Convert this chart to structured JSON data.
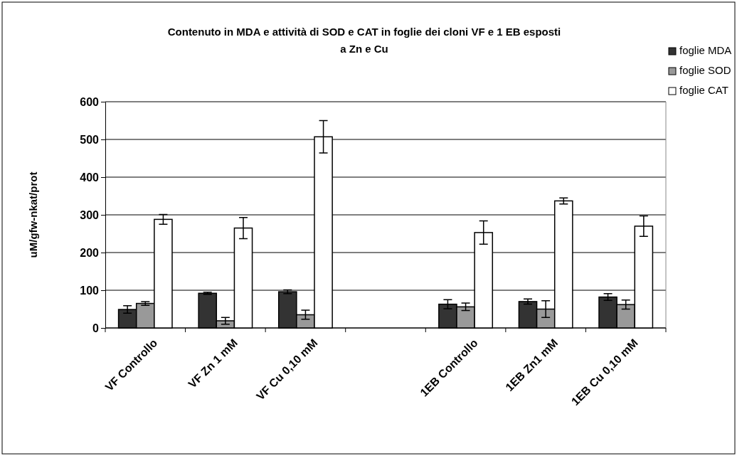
{
  "chart_data": {
    "type": "bar",
    "title": "Contenuto in MDA e attività di SOD e CAT in foglie dei cloni VF e 1 EB esposti a Zn e Cu",
    "ylabel": "uM/gfw-nkat/prot",
    "categories": [
      "VF Controllo",
      "VF Zn 1 mM",
      "VF Cu 0,10 mM",
      null,
      "1EB Controllo",
      "1EB Zn1 mM",
      "1EB Cu 0,10 mM"
    ],
    "series": [
      {
        "name": "foglie MDA",
        "color": "#333333",
        "values": [
          49,
          92,
          96,
          null,
          63,
          70,
          82
        ],
        "errors": [
          10,
          3,
          5,
          null,
          12,
          7,
          9
        ]
      },
      {
        "name": "foglie SOD",
        "color": "#999999",
        "values": [
          65,
          19,
          35,
          null,
          56,
          50,
          62
        ],
        "errors": [
          5,
          9,
          12,
          null,
          10,
          22,
          12
        ]
      },
      {
        "name": "foglie CAT",
        "color": "#ffffff",
        "values": [
          288,
          265,
          507,
          null,
          253,
          337,
          270
        ],
        "errors": [
          13,
          28,
          43,
          null,
          31,
          8,
          27
        ]
      }
    ],
    "ylim": [
      0,
      600
    ],
    "yticks": [
      0,
      100,
      200,
      300,
      400,
      500,
      600
    ],
    "grid": "y",
    "legend": "top right"
  }
}
